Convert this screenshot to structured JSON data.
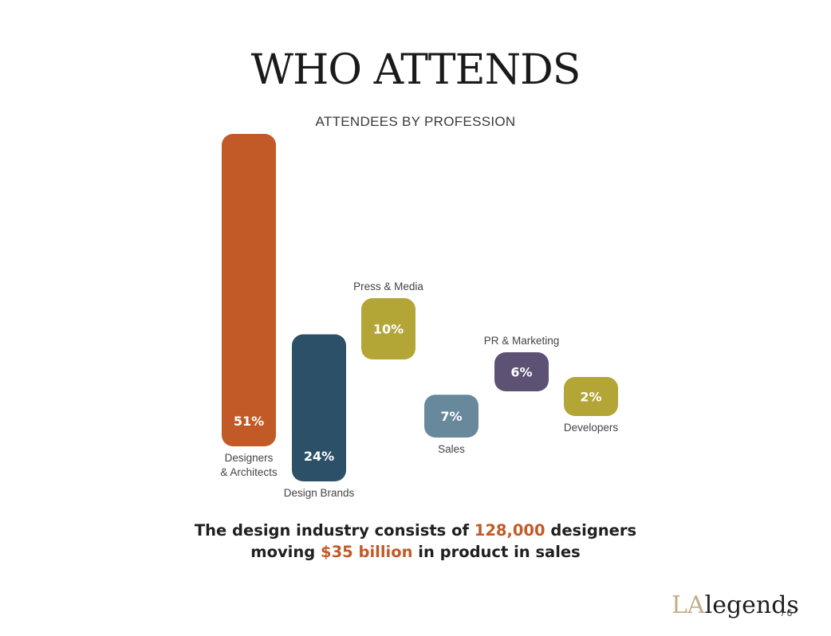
{
  "title": "WHO ATTENDS",
  "summary": {
    "line1_pre": "The design industry consists of ",
    "line1_hl": "128,000",
    "line1_post": " designers",
    "line2_pre": "moving ",
    "line2_hl": "$35 billion",
    "line2_post": " in product in sales"
  },
  "brand": {
    "part1": "LA",
    "part2": "legends"
  },
  "page_number": "/ 6",
  "colors": {
    "accent": "#c25a27"
  },
  "chart_data": {
    "type": "bar",
    "title": "ATTENDEES BY PROFESSION",
    "unit": "%",
    "categories": [
      "Designers & Architects",
      "Design Brands",
      "Press & Media",
      "Sales",
      "PR & Marketing",
      "Developers"
    ],
    "values": [
      51,
      24,
      10,
      7,
      6,
      2
    ],
    "value_labels": [
      "51%",
      "24%",
      "10%",
      "7%",
      "6%",
      "2%"
    ],
    "label_lines": [
      [
        "Designers",
        "& Architects"
      ],
      [
        "Design Brands"
      ],
      [
        "Press & Media"
      ],
      [
        "Sales"
      ],
      [
        "PR & Marketing"
      ],
      [
        "Developers"
      ]
    ],
    "label_positions": [
      "below",
      "below",
      "above",
      "below",
      "above",
      "below"
    ],
    "colors": [
      "#c25a27",
      "#2d5069",
      "#b4a537",
      "#68889c",
      "#5d5273",
      "#b4a537"
    ],
    "xlabel": "",
    "ylabel": ""
  }
}
